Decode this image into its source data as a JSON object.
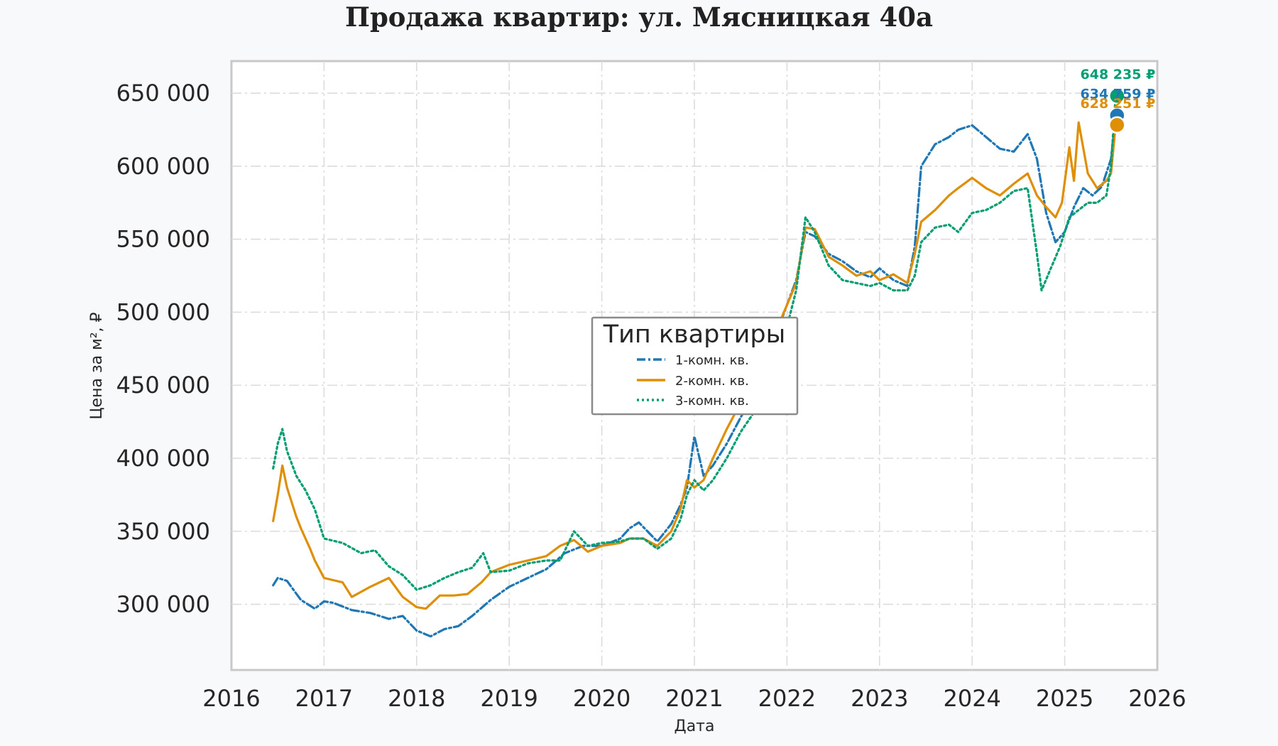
{
  "chart_data": {
    "type": "line",
    "title": "Продажа квартир: ул. Мясницкая 40а",
    "xlabel": "Дата",
    "ylabel": "Цена за м², ₽",
    "xlim": [
      2016,
      2026
    ],
    "ylim": [
      255000,
      672000
    ],
    "x_ticks": [
      2016,
      2017,
      2018,
      2019,
      2020,
      2021,
      2022,
      2023,
      2024,
      2025,
      2026
    ],
    "x_tick_labels": [
      "2016",
      "2017",
      "2018",
      "2019",
      "2020",
      "2021",
      "2022",
      "2023",
      "2024",
      "2025",
      "2026"
    ],
    "y_ticks": [
      300000,
      350000,
      400000,
      450000,
      500000,
      550000,
      600000,
      650000
    ],
    "y_tick_labels": [
      "300 000",
      "350 000",
      "400 000",
      "450 000",
      "500 000",
      "550 000",
      "600 000",
      "650 000"
    ],
    "grid": true,
    "legend": {
      "title": "Тип квартиры",
      "placement": "center",
      "entries": [
        "1-комн. кв.",
        "2-комн. кв.",
        "3-комн. кв."
      ]
    },
    "series": [
      {
        "name": "1-комн. кв.",
        "color": "#1f77b4",
        "style": "dashdot",
        "x": [
          2016.45,
          2016.5,
          2016.6,
          2016.75,
          2016.9,
          2017.0,
          2017.1,
          2017.3,
          2017.5,
          2017.7,
          2017.85,
          2018.0,
          2018.15,
          2018.3,
          2018.45,
          2018.6,
          2018.8,
          2019.0,
          2019.2,
          2019.4,
          2019.6,
          2019.8,
          2020.0,
          2020.2,
          2020.3,
          2020.4,
          2020.6,
          2020.75,
          2020.85,
          2020.92,
          2021.0,
          2021.1,
          2021.2,
          2021.35,
          2021.5,
          2021.65,
          2021.8,
          2021.9,
          2022.0,
          2022.1,
          2022.2,
          2022.3,
          2022.45,
          2022.6,
          2022.75,
          2022.9,
          2023.0,
          2023.15,
          2023.3,
          2023.38,
          2023.45,
          2023.6,
          2023.75,
          2023.85,
          2024.0,
          2024.15,
          2024.3,
          2024.45,
          2024.6,
          2024.7,
          2024.8,
          2024.9,
          2025.0,
          2025.1,
          2025.2,
          2025.3,
          2025.4,
          2025.5,
          2025.55
        ],
        "y": [
          313000,
          318000,
          316000,
          303000,
          297000,
          302000,
          301000,
          296000,
          294000,
          290000,
          292000,
          282000,
          278000,
          283000,
          285000,
          292000,
          303000,
          312000,
          318000,
          324000,
          335000,
          340000,
          340000,
          345000,
          352000,
          356000,
          343000,
          355000,
          368000,
          380000,
          415000,
          388000,
          395000,
          410000,
          428000,
          445000,
          468000,
          488000,
          505000,
          522000,
          555000,
          552000,
          540000,
          535000,
          528000,
          524000,
          530000,
          522000,
          518000,
          545000,
          600000,
          615000,
          620000,
          625000,
          628000,
          620000,
          612000,
          610000,
          622000,
          605000,
          568000,
          548000,
          555000,
          572000,
          585000,
          580000,
          586000,
          605000,
          634759
        ]
      },
      {
        "name": "2-комн. кв.",
        "color": "#de8f05",
        "style": "solid",
        "x": [
          2016.45,
          2016.5,
          2016.55,
          2016.6,
          2016.7,
          2016.75,
          2016.85,
          2016.9,
          2017.0,
          2017.2,
          2017.3,
          2017.5,
          2017.7,
          2017.85,
          2018.0,
          2018.1,
          2018.25,
          2018.4,
          2018.55,
          2018.7,
          2018.8,
          2019.0,
          2019.2,
          2019.4,
          2019.55,
          2019.7,
          2019.85,
          2020.0,
          2020.2,
          2020.3,
          2020.45,
          2020.6,
          2020.75,
          2020.85,
          2020.92,
          2021.0,
          2021.1,
          2021.2,
          2021.35,
          2021.5,
          2021.65,
          2021.8,
          2021.9,
          2022.0,
          2022.1,
          2022.2,
          2022.3,
          2022.45,
          2022.6,
          2022.75,
          2022.9,
          2023.0,
          2023.15,
          2023.3,
          2023.38,
          2023.45,
          2023.6,
          2023.75,
          2023.85,
          2024.0,
          2024.15,
          2024.3,
          2024.45,
          2024.6,
          2024.7,
          2024.8,
          2024.9,
          2024.97,
          2025.05,
          2025.1,
          2025.15,
          2025.25,
          2025.35,
          2025.45,
          2025.5,
          2025.55
        ],
        "y": [
          357000,
          375000,
          395000,
          380000,
          360000,
          352000,
          338000,
          330000,
          318000,
          315000,
          305000,
          312000,
          318000,
          305000,
          298000,
          297000,
          306000,
          306000,
          307000,
          315000,
          322000,
          327000,
          330000,
          333000,
          340000,
          344000,
          336000,
          340000,
          342000,
          345000,
          345000,
          340000,
          350000,
          365000,
          385000,
          380000,
          385000,
          400000,
          420000,
          438000,
          455000,
          478000,
          490000,
          505000,
          520000,
          558000,
          557000,
          538000,
          532000,
          525000,
          528000,
          522000,
          526000,
          520000,
          540000,
          562000,
          570000,
          580000,
          585000,
          592000,
          585000,
          580000,
          588000,
          595000,
          580000,
          572000,
          565000,
          575000,
          613000,
          590000,
          630000,
          595000,
          585000,
          590000,
          595000,
          628251
        ]
      },
      {
        "name": "3-комн. кв.",
        "color": "#029e73",
        "style": "dotted",
        "x": [
          2016.45,
          2016.5,
          2016.55,
          2016.6,
          2016.7,
          2016.8,
          2016.9,
          2017.0,
          2017.2,
          2017.4,
          2017.55,
          2017.7,
          2017.85,
          2018.0,
          2018.15,
          2018.3,
          2018.45,
          2018.6,
          2018.72,
          2018.8,
          2019.0,
          2019.2,
          2019.4,
          2019.55,
          2019.7,
          2019.85,
          2020.0,
          2020.2,
          2020.3,
          2020.45,
          2020.6,
          2020.75,
          2020.85,
          2020.92,
          2021.0,
          2021.1,
          2021.2,
          2021.35,
          2021.5,
          2021.65,
          2021.8,
          2021.9,
          2022.0,
          2022.1,
          2022.2,
          2022.3,
          2022.45,
          2022.6,
          2022.75,
          2022.9,
          2023.0,
          2023.15,
          2023.3,
          2023.38,
          2023.45,
          2023.6,
          2023.75,
          2023.85,
          2024.0,
          2024.15,
          2024.3,
          2024.45,
          2024.6,
          2024.7,
          2024.75,
          2024.85,
          2024.95,
          2025.05,
          2025.15,
          2025.25,
          2025.35,
          2025.45,
          2025.5,
          2025.55
        ],
        "y": [
          393000,
          410000,
          420000,
          405000,
          388000,
          378000,
          365000,
          345000,
          342000,
          335000,
          337000,
          326000,
          320000,
          310000,
          313000,
          318000,
          322000,
          325000,
          335000,
          322000,
          323000,
          328000,
          330000,
          330000,
          350000,
          340000,
          342000,
          343000,
          345000,
          345000,
          338000,
          345000,
          358000,
          375000,
          385000,
          378000,
          385000,
          400000,
          418000,
          432000,
          450000,
          472000,
          490000,
          515000,
          565000,
          555000,
          532000,
          522000,
          520000,
          518000,
          520000,
          515000,
          515000,
          525000,
          548000,
          558000,
          560000,
          555000,
          568000,
          570000,
          575000,
          583000,
          585000,
          540000,
          515000,
          530000,
          545000,
          565000,
          570000,
          575000,
          575000,
          580000,
          600000,
          648235
        ]
      }
    ],
    "end_labels": [
      {
        "series": "3-комн. кв.",
        "text": "648 235 ₽"
      },
      {
        "series": "1-комн. кв.",
        "text": "634 759 ₽"
      },
      {
        "series": "2-комн. кв.",
        "text": "628 251 ₽"
      }
    ]
  }
}
